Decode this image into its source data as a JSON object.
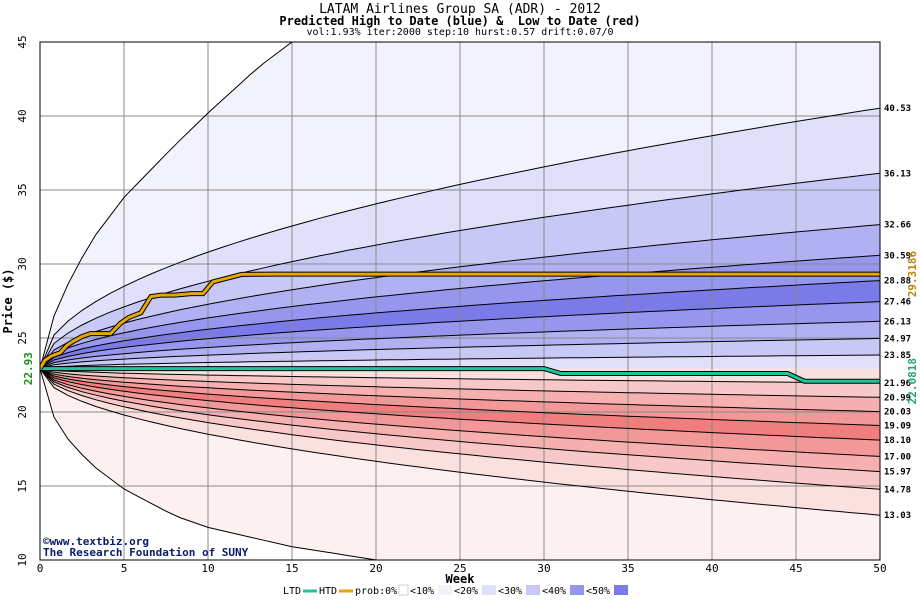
{
  "chart_data": {
    "type": "area",
    "title": "LATAM Airlines Group SA (ADR) - 2012",
    "subtitle": "Predicted High to Date (blue) &  Low to Date (red)",
    "params": "vol:1.93% iter:2000 step:10 hurst:0.57 drift:0.07/0",
    "xlabel": "Week",
    "ylabel": "Price ($)",
    "xlim": [
      0,
      50
    ],
    "ylim": [
      10,
      45
    ],
    "x_ticks": [
      0,
      5,
      10,
      15,
      20,
      25,
      30,
      35,
      40,
      45,
      50
    ],
    "y_ticks": [
      10,
      15,
      20,
      25,
      30,
      35,
      40,
      45
    ],
    "grid": true,
    "start_price": 22.93,
    "start_price_label": "22.93",
    "htd_final_label": "29.3186",
    "ltd_final_label": "22.0818",
    "band_colors": {
      "blue": [
        "#f2f2fd",
        "#e0e0fa",
        "#c8c8f6",
        "#b0b0f2",
        "#9696ee",
        "#7a7ae8"
      ],
      "red": [
        "#fdf0f0",
        "#fbe0e0",
        "#f8c8c8",
        "#f6b0b0",
        "#f39898",
        "#f07e7e"
      ]
    },
    "line_colors": {
      "htd": "#e6a800",
      "ltd": "#1fc49b",
      "outer": "#000000"
    },
    "upper_quantiles": [
      {
        "label": "50%",
        "end": 40.53,
        "printed": "40.53"
      },
      {
        "label": "",
        "end": 36.13,
        "printed": "36.13"
      },
      {
        "label": "",
        "end": 32.66,
        "printed": "32.66"
      },
      {
        "label": "",
        "end": 30.59,
        "printed": "30.59"
      },
      {
        "label": "",
        "end": 28.88,
        "printed": "28.88"
      },
      {
        "label": "",
        "end": 27.46,
        "printed": "27.46"
      },
      {
        "label": "",
        "end": 26.13,
        "printed": "26.13"
      },
      {
        "label": "",
        "end": 24.97,
        "printed": "24.97"
      },
      {
        "label": "",
        "end": 23.85,
        "printed": "23.85"
      }
    ],
    "lower_quantiles": [
      {
        "end": 21.96,
        "printed": "21.96"
      },
      {
        "end": 20.99,
        "printed": "20.99"
      },
      {
        "end": 20.03,
        "printed": "20.03"
      },
      {
        "end": 19.09,
        "printed": "19.09"
      },
      {
        "end": 18.1,
        "printed": "18.10"
      },
      {
        "end": 17.0,
        "printed": "17.00"
      },
      {
        "end": 15.97,
        "printed": "15.97"
      },
      {
        "end": 14.78,
        "printed": "14.78"
      },
      {
        "end": 13.03,
        "printed": "13.03"
      }
    ],
    "outer_upper": {
      "x": [
        0,
        1,
        3,
        5,
        8,
        10,
        13,
        15
      ],
      "y": [
        22.93,
        27.2,
        31.5,
        34.5,
        38.0,
        40.2,
        43.3,
        45
      ]
    },
    "outer_lower": {
      "x": [
        0,
        1,
        3,
        5,
        8,
        10,
        15,
        20
      ],
      "y": [
        22.93,
        19.0,
        16.5,
        14.8,
        13.0,
        12.2,
        10.9,
        10.0
      ]
    },
    "htd_series": {
      "x": [
        0,
        0.3,
        0.7,
        1.2,
        1.6,
        2.0,
        2.5,
        3.0,
        3.5,
        4.2,
        4.8,
        5.3,
        6.0,
        6.6,
        7.2,
        8.0,
        9.0,
        9.7,
        10.3,
        11.0,
        12.0,
        14.0,
        20.0,
        30.0,
        40.0,
        50.0
      ],
      "y": [
        22.93,
        23.5,
        23.8,
        24.0,
        24.5,
        24.8,
        25.1,
        25.3,
        25.3,
        25.3,
        26.0,
        26.4,
        26.7,
        27.8,
        27.9,
        27.9,
        28.0,
        28.0,
        28.8,
        29.0,
        29.3,
        29.32,
        29.32,
        29.32,
        29.32,
        29.32
      ]
    },
    "ltd_series": {
      "x": [
        0,
        5,
        10,
        20,
        30,
        31,
        35,
        40,
        44.5,
        45.5,
        50
      ],
      "y": [
        22.93,
        22.93,
        22.93,
        22.93,
        22.93,
        22.6,
        22.6,
        22.6,
        22.6,
        22.08,
        22.08
      ]
    },
    "watermark": {
      "line1": "©www.textbiz.org",
      "line2": "The Research Foundation of SUNY"
    },
    "legend": {
      "ltd": "LTD",
      "htd": "HTD",
      "prob": "prob:0%",
      "items": [
        "<10%",
        "<20%",
        "<30%",
        "<40%",
        "<50%"
      ],
      "swatch_colors": [
        "#ffffff",
        "#f2f2fd",
        "#e0e0fa",
        "#c8c8f6",
        "#9696ee",
        "#7a7ae8"
      ]
    }
  }
}
